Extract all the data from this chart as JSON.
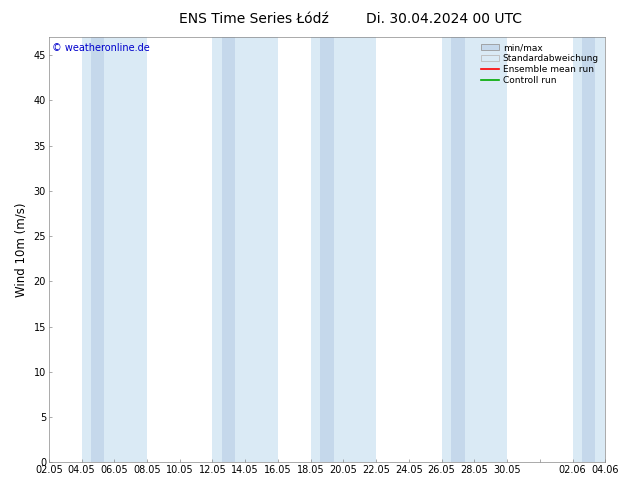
{
  "title": "ENS Time Series Łódź",
  "title2": "Di. 30.04.2024 00 UTC",
  "ylabel": "Wind 10m (m/s)",
  "watermark": "© weatheronline.de",
  "watermark_color": "#0000cc",
  "ylim": [
    0,
    47
  ],
  "yticks": [
    0,
    5,
    10,
    15,
    20,
    25,
    30,
    35,
    40,
    45
  ],
  "background_color": "#ffffff",
  "plot_bg_color": "#ffffff",
  "band_outer_color": "#daeaf5",
  "band_inner_color": "#c5d8eb",
  "xtick_labels": [
    "02.05",
    "04.05",
    "06.05",
    "08.05",
    "10.05",
    "12.05",
    "14.05",
    "16.05",
    "18.05",
    "20.05",
    "22.05",
    "24.05",
    "26.05",
    "28.05",
    "30.05",
    "",
    "02.06",
    "04.06"
  ],
  "xtick_positions": [
    0,
    1,
    2,
    3,
    4,
    5,
    6,
    7,
    8,
    9,
    10,
    11,
    12,
    13,
    14,
    15,
    16,
    17
  ],
  "band_outer_spans": [
    [
      1,
      3
    ],
    [
      5,
      7
    ],
    [
      8,
      10
    ],
    [
      12,
      14
    ],
    [
      16,
      18
    ]
  ],
  "band_inner_spans": [
    [
      1.3,
      1.7
    ],
    [
      5.3,
      5.7
    ],
    [
      8.3,
      8.7
    ],
    [
      12.3,
      12.7
    ],
    [
      16.3,
      16.7
    ]
  ],
  "legend_labels": [
    "min/max",
    "Standardabweichung",
    "Ensemble mean run",
    "Controll run"
  ],
  "legend_colors_line": [
    "#aaaaaa",
    "#aaaaaa",
    "#ff0000",
    "#00aa00"
  ],
  "title_fontsize": 10,
  "tick_fontsize": 7,
  "ylabel_fontsize": 8.5
}
